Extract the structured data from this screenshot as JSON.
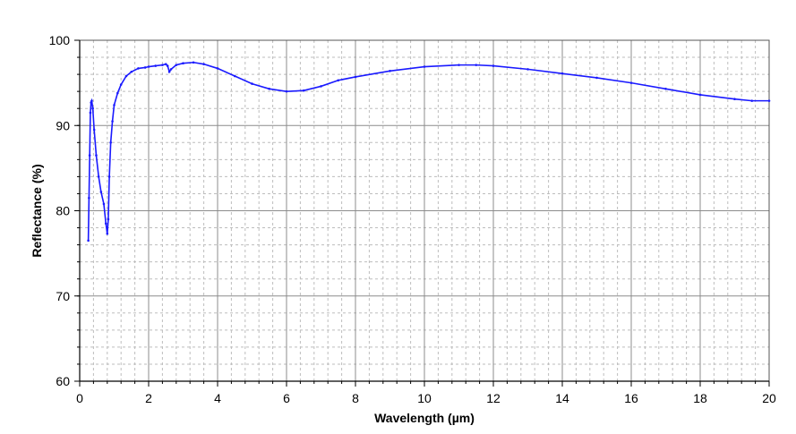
{
  "chart_data": {
    "type": "line",
    "title": "",
    "xlabel": "Wavelength (µm)",
    "ylabel": "Reflectance (%)",
    "xlim": [
      0,
      20
    ],
    "ylim": [
      60,
      100
    ],
    "x_ticks": [
      0,
      2,
      4,
      6,
      8,
      10,
      12,
      14,
      16,
      18,
      20
    ],
    "y_ticks": [
      60,
      70,
      80,
      90,
      100
    ],
    "x_minor_step": 0.4,
    "y_minor_step": 2,
    "grid": true,
    "legend": "none",
    "colors": {
      "line": "#1a1aff",
      "major_grid": "#8c8c8c",
      "minor_grid": "#bdbdbd",
      "axis": "#000000"
    },
    "series": [
      {
        "x": [
          0.25,
          0.27,
          0.29,
          0.31,
          0.33,
          0.35,
          0.38,
          0.42,
          0.48,
          0.55,
          0.62,
          0.7,
          0.76,
          0.8,
          0.83,
          0.86,
          0.9,
          0.95,
          1.0,
          1.1,
          1.2,
          1.35,
          1.5,
          1.7,
          1.9,
          2.0,
          2.2,
          2.4,
          2.5,
          2.55,
          2.6,
          2.65,
          2.8,
          3.0,
          3.3,
          3.6,
          4.0,
          4.5,
          5.0,
          5.5,
          6.0,
          6.5,
          7.0,
          7.5,
          8.0,
          9.0,
          10.0,
          11.0,
          11.5,
          12.0,
          13.0,
          14.0,
          15.0,
          16.0,
          17.0,
          18.0,
          19.0,
          19.5,
          20.0
        ],
        "y": [
          76.5,
          81.5,
          86.5,
          91.5,
          92.7,
          92.9,
          92.0,
          89.5,
          86.5,
          84.0,
          82.2,
          80.8,
          78.5,
          77.3,
          79.0,
          84.0,
          88.0,
          90.5,
          92.4,
          93.8,
          94.8,
          95.8,
          96.3,
          96.7,
          96.8,
          96.9,
          97.0,
          97.1,
          97.2,
          97.0,
          96.3,
          96.6,
          97.1,
          97.3,
          97.4,
          97.2,
          96.7,
          95.8,
          94.9,
          94.3,
          94.0,
          94.1,
          94.6,
          95.3,
          95.7,
          96.4,
          96.9,
          97.1,
          97.1,
          97.0,
          96.6,
          96.1,
          95.6,
          95.0,
          94.3,
          93.6,
          93.1,
          92.9,
          92.9
        ]
      }
    ]
  }
}
